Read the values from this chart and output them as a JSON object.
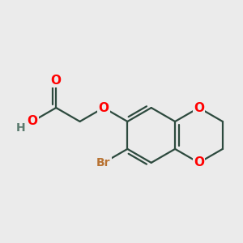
{
  "bg_color": "#ebebeb",
  "bond_color": "#2d4a3e",
  "bond_width": 1.6,
  "atom_colors": {
    "O": "#ff0000",
    "Br": "#b87333",
    "H": "#5a7a6e",
    "C": "#2d4a3e"
  },
  "font_size": 11,
  "font_size_br": 10,
  "font_size_h": 10
}
